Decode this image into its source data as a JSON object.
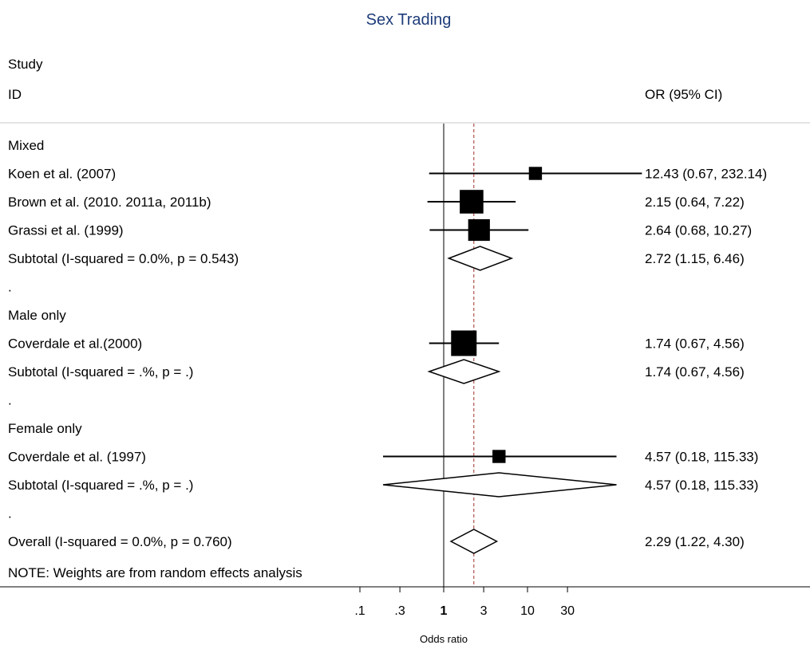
{
  "chart_data": {
    "type": "forest",
    "title": "Sex Trading",
    "column_headers": {
      "study_line1": "Study",
      "study_line2": "ID",
      "estimate": "OR (95% CI)"
    },
    "xlabel": "Odds ratio",
    "x_scale": "log",
    "x_ticks": [
      {
        "value": 0.1,
        "label": ".1",
        "bold": false
      },
      {
        "value": 0.3,
        "label": ".3",
        "bold": false
      },
      {
        "value": 1,
        "label": "1",
        "bold": true
      },
      {
        "value": 3,
        "label": "3",
        "bold": false
      },
      {
        "value": 10,
        "label": "10",
        "bold": false
      },
      {
        "value": 30,
        "label": "30",
        "bold": false
      }
    ],
    "null_line": 1,
    "overall_line": 2.29,
    "rows": [
      {
        "kind": "group",
        "label": "Mixed"
      },
      {
        "kind": "study",
        "label": "Koen et al. (2007)",
        "or": 12.43,
        "lo": 0.67,
        "hi": 232.14,
        "ci_text": "12.43 (0.67, 232.14)",
        "weight": 0.35
      },
      {
        "kind": "study",
        "label": "Brown et al. (2010. 2011a, 2011b)",
        "or": 2.15,
        "lo": 0.64,
        "hi": 7.22,
        "ci_text": "2.15 (0.64, 7.22)",
        "weight": 0.9
      },
      {
        "kind": "study",
        "label": "Grassi et al. (1999)",
        "or": 2.64,
        "lo": 0.68,
        "hi": 10.27,
        "ci_text": "2.64 (0.68, 10.27)",
        "weight": 0.8
      },
      {
        "kind": "subtotal",
        "label": "Subtotal  (I-squared = 0.0%, p = 0.543)",
        "or": 2.72,
        "lo": 1.15,
        "hi": 6.46,
        "ci_text": "2.72 (1.15, 6.46)"
      },
      {
        "kind": "blank",
        "label": "."
      },
      {
        "kind": "group",
        "label": "Male only"
      },
      {
        "kind": "study",
        "label": "Coverdale et al.(2000)",
        "or": 1.74,
        "lo": 0.67,
        "hi": 4.56,
        "ci_text": "1.74 (0.67, 4.56)",
        "weight": 1.0
      },
      {
        "kind": "subtotal",
        "label": "Subtotal  (I-squared = .%, p = .)",
        "or": 1.74,
        "lo": 0.67,
        "hi": 4.56,
        "ci_text": "1.74 (0.67, 4.56)"
      },
      {
        "kind": "blank",
        "label": "."
      },
      {
        "kind": "group",
        "label": "Female only"
      },
      {
        "kind": "study",
        "label": "Coverdale et al. (1997)",
        "or": 4.57,
        "lo": 0.18,
        "hi": 115.33,
        "ci_text": "4.57 (0.18, 115.33)",
        "weight": 0.35
      },
      {
        "kind": "subtotal",
        "label": "Subtotal  (I-squared = .%, p = .)",
        "or": 4.57,
        "lo": 0.18,
        "hi": 115.33,
        "ci_text": "4.57 (0.18, 115.33)"
      },
      {
        "kind": "blank",
        "label": "."
      },
      {
        "kind": "overall",
        "label": "Overall  (I-squared = 0.0%, p = 0.760)",
        "or": 2.29,
        "lo": 1.22,
        "hi": 4.3,
        "ci_text": "2.29 (1.22, 4.30)"
      }
    ],
    "note": "NOTE: Weights are from random effects analysis"
  }
}
